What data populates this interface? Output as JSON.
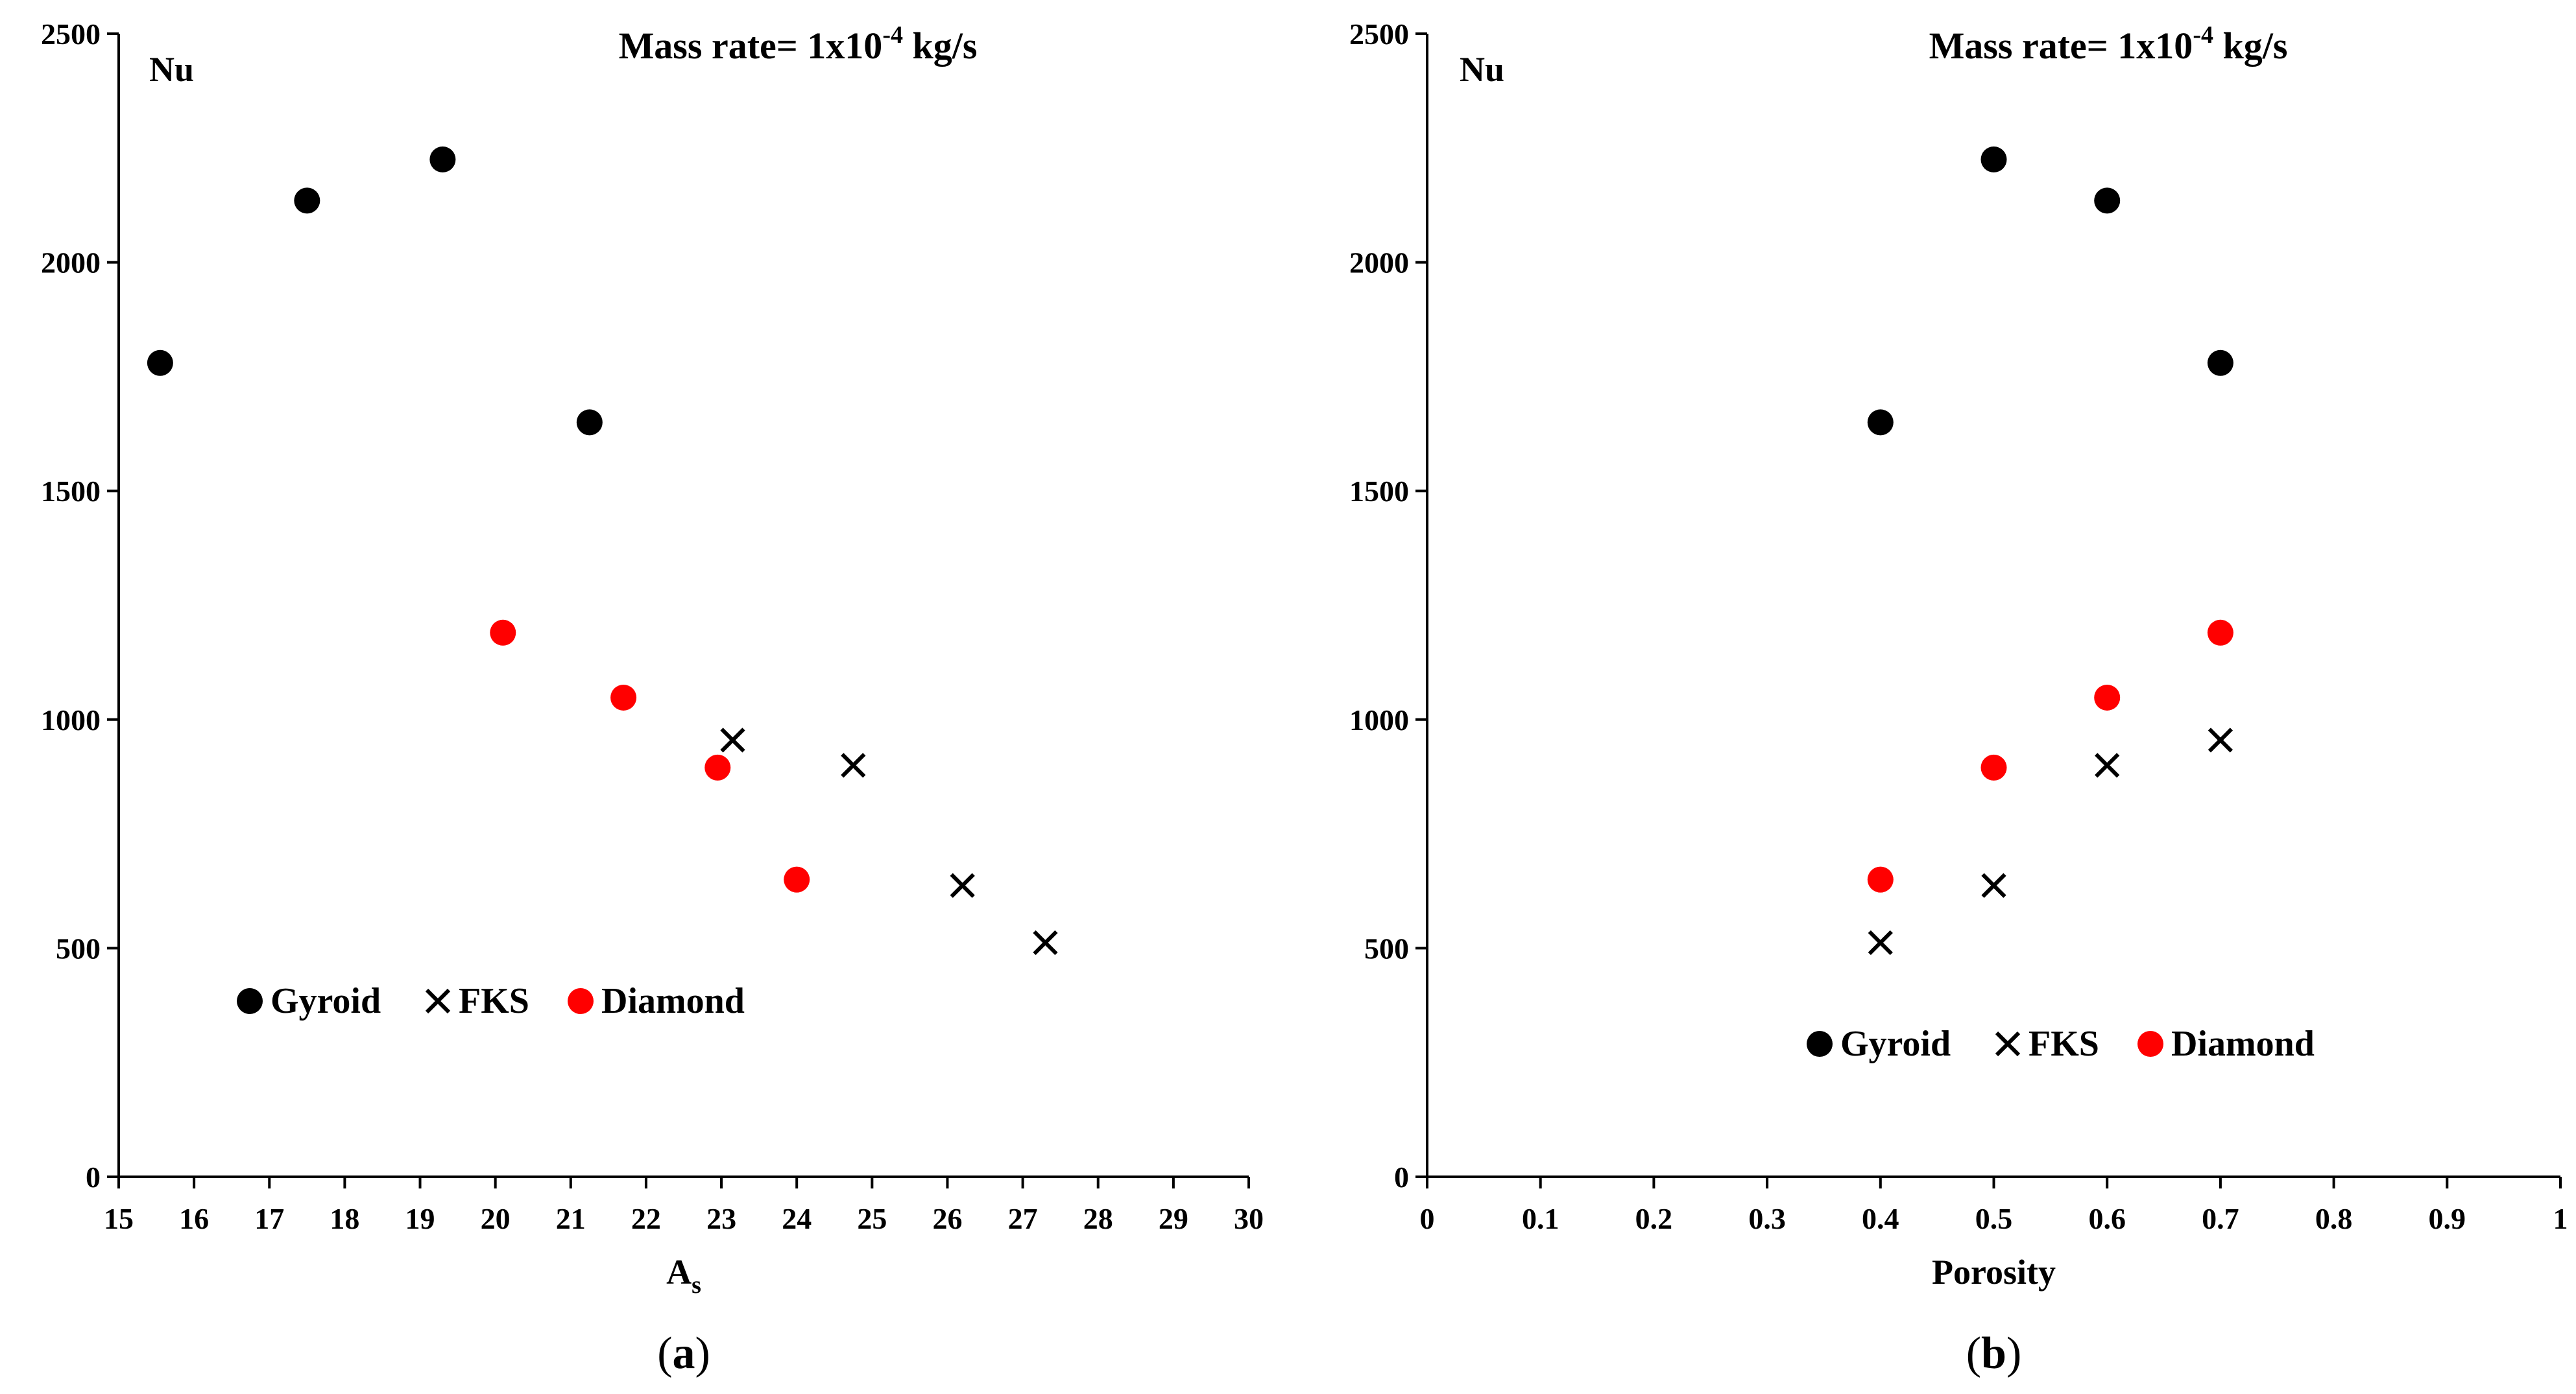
{
  "chart_data": [
    {
      "type": "scatter",
      "panel_label_prefix": "(",
      "panel_label": "a",
      "panel_label_suffix": ")",
      "title_prefix": "Mass rate= 1x10",
      "title_exponent": "-4",
      "title_suffix": " kg/s",
      "xlabel": "A",
      "xlabel_subscript": "s",
      "ylabel": "Nu",
      "xlim": [
        15,
        30
      ],
      "ylim": [
        0,
        2500
      ],
      "xticks": [
        "15",
        "16",
        "17",
        "18",
        "19",
        "20",
        "21",
        "22",
        "23",
        "24",
        "25",
        "26",
        "27",
        "28",
        "29",
        "30"
      ],
      "yticks": [
        "0",
        "500",
        "1000",
        "1500",
        "2000",
        "2500"
      ],
      "legend_position": "bottom-left",
      "series": [
        {
          "name": "Gyroid",
          "marker": "circle",
          "color": "#000000",
          "points": [
            [
              15.55,
              1780
            ],
            [
              17.5,
              2135
            ],
            [
              19.3,
              2225
            ],
            [
              21.25,
              1650
            ]
          ]
        },
        {
          "name": "FKS",
          "marker": "x",
          "color": "#000000",
          "points": [
            [
              23.15,
              955
            ],
            [
              24.75,
              900
            ],
            [
              26.2,
              637
            ],
            [
              27.3,
              512
            ]
          ]
        },
        {
          "name": "Diamond",
          "marker": "circle",
          "color": "#ff0000",
          "points": [
            [
              20.1,
              1190
            ],
            [
              21.7,
              1048
            ],
            [
              22.95,
              895
            ],
            [
              24.0,
              650
            ]
          ]
        }
      ]
    },
    {
      "type": "scatter",
      "panel_label_prefix": "(",
      "panel_label": "b",
      "panel_label_suffix": ")",
      "title_prefix": "Mass rate= 1x10",
      "title_exponent": "-4",
      "title_suffix": " kg/s",
      "xlabel": "Porosity",
      "xlabel_subscript": "",
      "ylabel": "Nu",
      "xlim": [
        0,
        1
      ],
      "ylim": [
        0,
        2500
      ],
      "xticks": [
        "0",
        "0.1",
        "0.2",
        "0.3",
        "0.4",
        "0.5",
        "0.6",
        "0.7",
        "0.8",
        "0.9",
        "1"
      ],
      "yticks": [
        "0",
        "500",
        "1000",
        "1500",
        "2000",
        "2500"
      ],
      "legend_position": "bottom-center",
      "series": [
        {
          "name": "Gyroid",
          "marker": "circle",
          "color": "#000000",
          "points": [
            [
              0.4,
              1650
            ],
            [
              0.5,
              2225
            ],
            [
              0.6,
              2135
            ],
            [
              0.7,
              1780
            ]
          ]
        },
        {
          "name": "FKS",
          "marker": "x",
          "color": "#000000",
          "points": [
            [
              0.4,
              512
            ],
            [
              0.5,
              637
            ],
            [
              0.6,
              900
            ],
            [
              0.7,
              955
            ]
          ]
        },
        {
          "name": "Diamond",
          "marker": "circle",
          "color": "#ff0000",
          "points": [
            [
              0.4,
              650
            ],
            [
              0.5,
              895
            ],
            [
              0.6,
              1048
            ],
            [
              0.7,
              1190
            ]
          ]
        }
      ]
    }
  ]
}
